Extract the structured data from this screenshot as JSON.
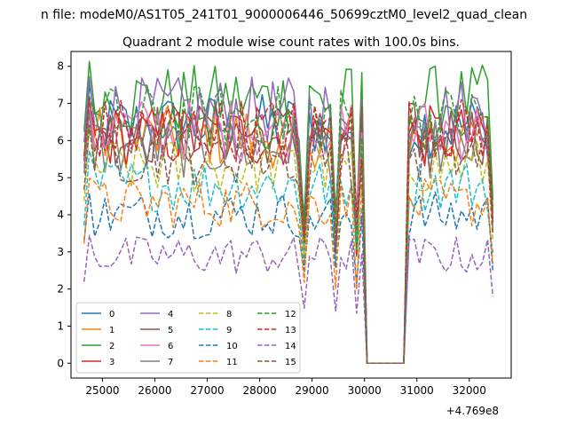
{
  "figure": {
    "suptitle": "n file: modeM0/AS1T05_241T01_9000006446_50699cztM0_level2_quad_clean"
  },
  "chart_data": {
    "type": "line",
    "title": "Quadrant 2 module wise count rates with 100.0s bins.",
    "xlabel": "",
    "ylabel": "",
    "x_offset_label": "+4.769e8",
    "xlim": [
      24400,
      32800
    ],
    "ylim": [
      -0.4,
      8.4
    ],
    "xticks": [
      25000,
      26000,
      27000,
      28000,
      29000,
      30000,
      31000,
      32000
    ],
    "yticks": [
      0,
      1,
      2,
      3,
      4,
      5,
      6,
      7,
      8
    ],
    "grid": false,
    "legend_placement": "lower-left",
    "legend_columns": 4,
    "x_start": 24650,
    "x_step": 100,
    "gap": {
      "from": 30050,
      "to": 30750,
      "value": 0
    },
    "drop_points": [
      28850,
      29450,
      29850
    ],
    "series": [
      {
        "name": "0",
        "color": "#1f77b4",
        "dash": "solid",
        "level": 6.4
      },
      {
        "name": "1",
        "color": "#ff7f0e",
        "dash": "solid",
        "level": 6.1
      },
      {
        "name": "2",
        "color": "#2ca02c",
        "dash": "solid",
        "level": 7.1
      },
      {
        "name": "3",
        "color": "#d62728",
        "dash": "solid",
        "level": 6.1
      },
      {
        "name": "4",
        "color": "#9467bd",
        "dash": "solid",
        "level": 6.8
      },
      {
        "name": "5",
        "color": "#8c564b",
        "dash": "solid",
        "level": 6.2
      },
      {
        "name": "6",
        "color": "#e377c2",
        "dash": "solid",
        "level": 6.3
      },
      {
        "name": "7",
        "color": "#7f7f7f",
        "dash": "solid",
        "level": 5.8
      },
      {
        "name": "8",
        "color": "#bcbd22",
        "dash": "dashed",
        "level": 5.3
      },
      {
        "name": "9",
        "color": "#17becf",
        "dash": "dashed",
        "level": 4.8
      },
      {
        "name": "10",
        "color": "#1f77b4",
        "dash": "dashed",
        "level": 4.0
      },
      {
        "name": "11",
        "color": "#ff7f0e",
        "dash": "dashed",
        "level": 4.3
      },
      {
        "name": "12",
        "color": "#2ca02c",
        "dash": "dashed",
        "level": 6.6
      },
      {
        "name": "13",
        "color": "#d62728",
        "dash": "dashed",
        "level": 6.3
      },
      {
        "name": "14",
        "color": "#9467bd",
        "dash": "dashed",
        "level": 2.9
      },
      {
        "name": "15",
        "color": "#8c564b",
        "dash": "dashed",
        "level": 5.6
      }
    ]
  }
}
